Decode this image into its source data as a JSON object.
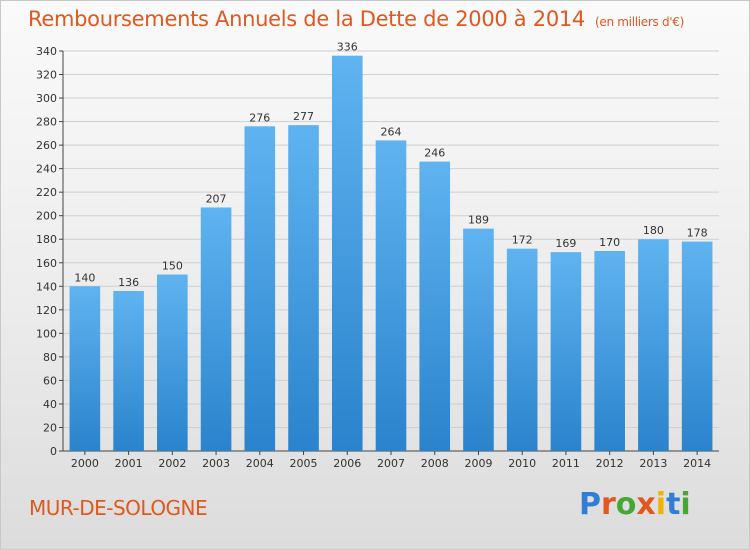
{
  "header": {
    "title": "Remboursements Annuels de la Dette de 2000 à 2014",
    "unit": "(en milliers d'€)"
  },
  "commune": "MUR-DE-SOLOGNE",
  "logo": {
    "text": "Proxiti",
    "letter_colors": [
      "#2f7fd6",
      "#e0581f",
      "#46a832",
      "#e0581f",
      "#f0b400",
      "#2f7fd6",
      "#46a832"
    ]
  },
  "colors": {
    "bar_top": "#5fb3f0",
    "bar_bottom": "#2a83cc",
    "accent": "#e0581f"
  },
  "chart_data": {
    "type": "bar",
    "categories": [
      "2000",
      "2001",
      "2002",
      "2003",
      "2004",
      "2005",
      "2006",
      "2007",
      "2008",
      "2009",
      "2010",
      "2011",
      "2012",
      "2013",
      "2014"
    ],
    "values": [
      140,
      136,
      150,
      207,
      276,
      277,
      336,
      264,
      246,
      189,
      172,
      169,
      170,
      180,
      178
    ],
    "ylim": [
      0,
      340
    ],
    "yticks": [
      0,
      20,
      40,
      60,
      80,
      100,
      120,
      140,
      160,
      180,
      200,
      220,
      240,
      260,
      280,
      300,
      320,
      340
    ],
    "grid": true,
    "legend": "none"
  }
}
